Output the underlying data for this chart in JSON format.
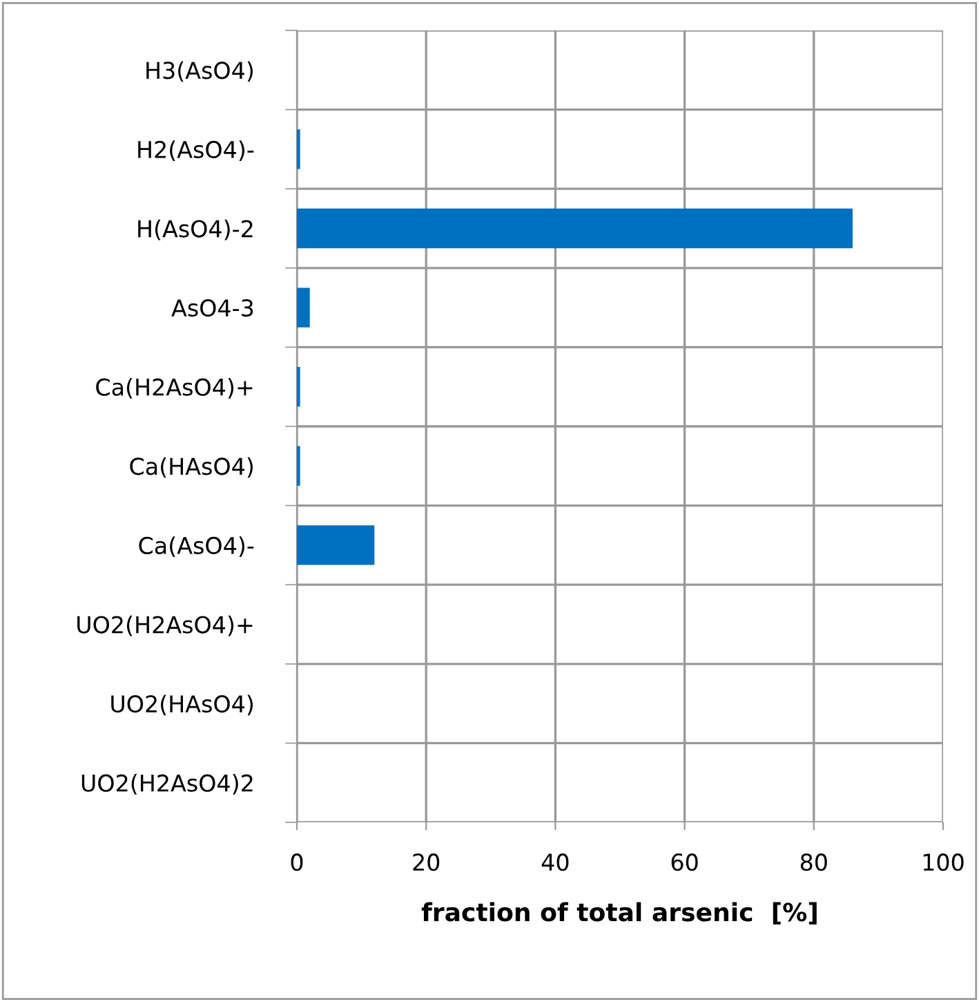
{
  "chart_data": {
    "type": "bar",
    "orientation": "horizontal",
    "categories": [
      "H3(AsO4)",
      "H2(AsO4)-",
      "H(AsO4)-2",
      "AsO4-3",
      "Ca(H2AsO4)+",
      "Ca(HAsO4)",
      "Ca(AsO4)-",
      "UO2(H2AsO4)+",
      "UO2(HAsO4)",
      "UO2(H2AsO4)2"
    ],
    "values": [
      0,
      0.5,
      86,
      2,
      0.5,
      0.5,
      12,
      0,
      0,
      0
    ],
    "color": "#0070c0",
    "xlabel": "fraction of total arsenic  [%]",
    "xlim": [
      0,
      100
    ],
    "xticks": [
      0,
      20,
      40,
      60,
      80,
      100
    ],
    "grid": true
  }
}
